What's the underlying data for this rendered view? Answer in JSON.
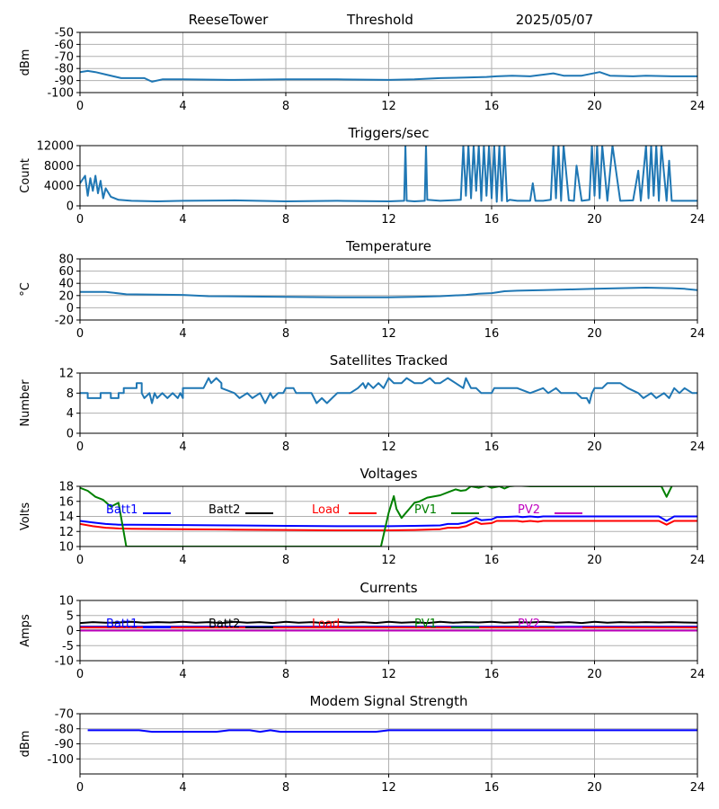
{
  "header": {
    "left": "ReeseTower",
    "center": "Threshold",
    "right": "2025/05/07"
  },
  "x_ticks": [
    "0",
    "4",
    "8",
    "12",
    "16",
    "20",
    "24"
  ],
  "chart_data": [
    {
      "id": "threshold",
      "type": "line",
      "title": "",
      "ylabel": "dBm",
      "xlim": [
        0,
        24
      ],
      "ylim": [
        -100,
        -50
      ],
      "yticks": [
        "-100",
        "-90",
        "-80",
        "-70",
        "-60",
        "-50"
      ],
      "grid": true,
      "series": [
        {
          "color": "#1f77b4",
          "x": [
            0,
            0.3,
            0.6,
            1,
            1.6,
            2.5,
            2.8,
            3.2,
            4,
            6,
            8,
            10,
            12,
            13,
            14,
            15,
            15.8,
            16.2,
            16.8,
            17.5,
            18.4,
            18.8,
            19.5,
            20.2,
            20.6,
            21.5,
            22,
            23,
            24
          ],
          "y": [
            -83,
            -82,
            -83,
            -85,
            -88,
            -88,
            -91,
            -89,
            -89,
            -89.5,
            -89,
            -89,
            -89.5,
            -89,
            -88,
            -87.5,
            -87,
            -86.5,
            -86,
            -86.5,
            -84,
            -86,
            -86,
            -83,
            -86,
            -86.5,
            -86,
            -86.5,
            -86.5
          ]
        }
      ]
    },
    {
      "id": "triggers",
      "type": "line",
      "title": "Triggers/sec",
      "ylabel": "Count",
      "xlim": [
        0,
        24
      ],
      "ylim": [
        0,
        12000
      ],
      "yticks": [
        "0",
        "4000",
        "8000",
        "12000"
      ],
      "grid": true,
      "series": [
        {
          "color": "#1f77b4",
          "x": [
            0,
            0.2,
            0.3,
            0.4,
            0.5,
            0.6,
            0.7,
            0.8,
            0.9,
            1.0,
            1.2,
            1.5,
            2,
            3,
            4,
            6,
            8,
            10,
            12,
            12.6,
            12.65,
            12.7,
            13,
            13.4,
            13.45,
            13.5,
            14,
            14.8,
            14.9,
            15.0,
            15.1,
            15.2,
            15.3,
            15.4,
            15.5,
            15.6,
            15.7,
            15.8,
            15.9,
            16.0,
            16.1,
            16.2,
            16.3,
            16.4,
            16.5,
            16.6,
            16.7,
            17.0,
            17.5,
            17.6,
            17.7,
            18.0,
            18.3,
            18.4,
            18.5,
            18.6,
            18.7,
            18.8,
            19.0,
            19.2,
            19.3,
            19.5,
            19.8,
            19.9,
            20.0,
            20.1,
            20.2,
            20.3,
            20.5,
            20.7,
            21.0,
            21.5,
            21.7,
            21.8,
            22.0,
            22.1,
            22.2,
            22.3,
            22.4,
            22.5,
            22.6,
            22.8,
            22.9,
            23.0,
            23.5,
            24
          ],
          "y": [
            4500,
            6000,
            2000,
            5500,
            3000,
            6000,
            2500,
            5000,
            1500,
            3500,
            1800,
            1200,
            1000,
            900,
            1000,
            1100,
            900,
            1000,
            900,
            1000,
            12000,
            1000,
            900,
            1000,
            12000,
            1200,
            1000,
            1200,
            12000,
            2000,
            12000,
            1500,
            12000,
            3000,
            12000,
            1000,
            12000,
            2000,
            12000,
            1500,
            12000,
            800,
            12000,
            1000,
            12000,
            900,
            1200,
            1000,
            1000,
            4500,
            1000,
            1000,
            1200,
            12000,
            1500,
            12000,
            1000,
            12000,
            1100,
            1000,
            8000,
            1000,
            1200,
            12000,
            2000,
            12000,
            1500,
            12000,
            1000,
            12000,
            1000,
            1100,
            7000,
            1000,
            12000,
            1500,
            12000,
            2000,
            12000,
            1000,
            12000,
            1000,
            9000,
            1000,
            1000,
            1000
          ]
        }
      ]
    },
    {
      "id": "temperature",
      "type": "line",
      "title": "Temperature",
      "ylabel": "°C",
      "xlim": [
        0,
        24
      ],
      "ylim": [
        -20,
        80
      ],
      "yticks": [
        "-20",
        "0",
        "20",
        "40",
        "60",
        "80"
      ],
      "grid": true,
      "series": [
        {
          "color": "#1f77b4",
          "x": [
            0,
            1,
            1.8,
            4,
            5,
            8,
            10,
            12,
            13,
            14,
            14.5,
            15,
            15.5,
            16,
            16.5,
            17,
            18,
            19,
            20,
            21,
            22,
            23,
            23.5,
            24
          ],
          "y": [
            26,
            26,
            22,
            21,
            19,
            18,
            17,
            17,
            18,
            19,
            20,
            21,
            23,
            24,
            27,
            28,
            29,
            30,
            31,
            32,
            33,
            32,
            31,
            29
          ]
        }
      ]
    },
    {
      "id": "satellites",
      "type": "line",
      "title": "Satellites Tracked",
      "ylabel": "Number",
      "xlim": [
        0,
        24
      ],
      "ylim": [
        0,
        12
      ],
      "yticks": [
        "0",
        "4",
        "8",
        "12"
      ],
      "grid": true,
      "series": [
        {
          "color": "#1f77b4",
          "x": [
            0,
            0.3,
            0.3,
            0.8,
            0.8,
            1.2,
            1.2,
            1.5,
            1.5,
            1.7,
            1.7,
            2.2,
            2.2,
            2.4,
            2.4,
            2.5,
            2.7,
            2.8,
            2.9,
            3.0,
            3.2,
            3.4,
            3.6,
            3.8,
            3.9,
            4.0,
            4.0,
            4.8,
            4.9,
            5.0,
            5.1,
            5.3,
            5.5,
            5.5,
            6.0,
            6.2,
            6.5,
            6.7,
            7.0,
            7.2,
            7.4,
            7.5,
            7.7,
            7.9,
            8.0,
            8.3,
            8.4,
            9.0,
            9.2,
            9.4,
            9.6,
            9.8,
            10.0,
            10.5,
            10.8,
            11.0,
            11.1,
            11.2,
            11.4,
            11.6,
            11.8,
            12.0,
            12.2,
            12.5,
            12.7,
            13.0,
            13.3,
            13.6,
            13.8,
            14.0,
            14.3,
            14.6,
            14.9,
            15.0,
            15.1,
            15.2,
            15.4,
            15.6,
            16.0,
            16.1,
            16.5,
            16.8,
            17.0,
            17.5,
            18.0,
            18.2,
            18.5,
            18.7,
            19.0,
            19.3,
            19.5,
            19.7,
            19.8,
            19.9,
            20.0,
            20.3,
            20.5,
            21.0,
            21.3,
            21.7,
            21.9,
            22.2,
            22.4,
            22.7,
            22.9,
            23.1,
            23.3,
            23.5,
            23.8,
            24
          ],
          "y": [
            8,
            8,
            7,
            7,
            8,
            8,
            7,
            7,
            8,
            8,
            9,
            9,
            10,
            10,
            8,
            7,
            8,
            6,
            8,
            7,
            8,
            7,
            8,
            7,
            8,
            7,
            9,
            9,
            10,
            11,
            10,
            11,
            10,
            9,
            8,
            7,
            8,
            7,
            8,
            6,
            8,
            7,
            8,
            8,
            9,
            9,
            8,
            8,
            6,
            7,
            6,
            7,
            8,
            8,
            9,
            10,
            9,
            10,
            9,
            10,
            9,
            11,
            10,
            10,
            11,
            10,
            10,
            11,
            10,
            10,
            11,
            10,
            9,
            11,
            10,
            9,
            9,
            8,
            8,
            9,
            9,
            9,
            9,
            8,
            9,
            8,
            9,
            8,
            8,
            8,
            7,
            7,
            6,
            8,
            9,
            9,
            10,
            10,
            9,
            8,
            7,
            8,
            7,
            8,
            7,
            9,
            8,
            9,
            8,
            8
          ]
        }
      ]
    },
    {
      "id": "voltages",
      "type": "line",
      "title": "Voltages",
      "ylabel": "Volts",
      "xlim": [
        0,
        24
      ],
      "ylim": [
        10,
        18
      ],
      "yticks": [
        "10",
        "12",
        "14",
        "16",
        "18"
      ],
      "grid": true,
      "legend": "top",
      "series": [
        {
          "name": "Batt1",
          "color": "#0000ff",
          "x": [
            0,
            0.5,
            1,
            1.5,
            2,
            4,
            6,
            8,
            10,
            12,
            13,
            14,
            14.3,
            14.7,
            15,
            15.4,
            15.6,
            16,
            16.2,
            16.4,
            17,
            17.2,
            17.5,
            17.8,
            18,
            19,
            20,
            21,
            22,
            22.5,
            22.8,
            23.1,
            23.5,
            24
          ],
          "y": [
            13.4,
            13.2,
            13.0,
            12.9,
            12.9,
            12.85,
            12.8,
            12.75,
            12.7,
            12.7,
            12.75,
            12.8,
            13.0,
            13.0,
            13.2,
            13.8,
            13.5,
            13.6,
            13.9,
            13.9,
            14.0,
            13.9,
            14.0,
            13.9,
            14.0,
            14.0,
            14.0,
            14.0,
            14.0,
            14.0,
            13.4,
            14.0,
            14.0,
            14.0
          ]
        },
        {
          "name": "Batt2",
          "color": "#000000",
          "x": [],
          "y": []
        },
        {
          "name": "Load",
          "color": "#ff0000",
          "x": [
            0,
            0.5,
            1,
            1.5,
            2,
            4,
            6,
            8,
            10,
            12,
            13,
            14,
            14.3,
            14.7,
            15,
            15.4,
            15.6,
            16,
            16.2,
            16.4,
            17,
            17.2,
            17.5,
            17.8,
            18,
            19,
            20,
            21,
            22,
            22.5,
            22.8,
            23.1,
            23.5,
            24
          ],
          "y": [
            13.0,
            12.7,
            12.5,
            12.4,
            12.35,
            12.3,
            12.25,
            12.2,
            12.15,
            12.15,
            12.2,
            12.3,
            12.5,
            12.5,
            12.7,
            13.3,
            13.0,
            13.1,
            13.4,
            13.4,
            13.4,
            13.3,
            13.4,
            13.3,
            13.4,
            13.4,
            13.4,
            13.4,
            13.4,
            13.4,
            12.9,
            13.4,
            13.4,
            13.4
          ]
        },
        {
          "name": "PV1",
          "color": "#008000",
          "x": [
            0,
            0.3,
            0.6,
            0.9,
            1.2,
            1.5,
            1.8,
            11.7,
            11.9,
            12.0,
            12.2,
            12.3,
            12.5,
            12.8,
            13.0,
            13.2,
            13.5,
            14.0,
            14.3,
            14.6,
            14.8,
            15.0,
            15.2,
            15.5,
            15.8,
            16.0,
            16.3,
            16.5,
            16.7,
            17.0,
            17.5,
            17.8,
            22.6,
            22.8,
            23.0
          ],
          "y": [
            17.8,
            17.4,
            16.6,
            16.2,
            15.3,
            15.8,
            10.0,
            10.0,
            13.0,
            14.5,
            16.7,
            15.0,
            13.8,
            15.0,
            15.8,
            16.0,
            16.5,
            16.8,
            17.2,
            17.6,
            17.4,
            17.5,
            18.0,
            17.8,
            18.1,
            17.8,
            18.0,
            17.7,
            18.0,
            18.1,
            18.0,
            18.0,
            18.0,
            16.6,
            18.0
          ]
        },
        {
          "name": "PV2",
          "color": "#bf00bf",
          "x": [],
          "y": []
        }
      ]
    },
    {
      "id": "currents",
      "type": "line",
      "title": "Currents",
      "ylabel": "Amps",
      "xlim": [
        0,
        24
      ],
      "ylim": [
        -10,
        10
      ],
      "yticks": [
        "-10",
        "-5",
        "0",
        "5",
        "10"
      ],
      "grid": true,
      "legend": "top",
      "series": [
        {
          "name": "Batt1",
          "color": "#0000ff",
          "x": [
            0,
            24
          ],
          "y": [
            1.3,
            1.3
          ]
        },
        {
          "name": "Batt2",
          "color": "#000000",
          "x": [
            0,
            0.5,
            1,
            1.5,
            2,
            2.5,
            3,
            3.5,
            4,
            4.5,
            5,
            5.5,
            6,
            6.5,
            7,
            7.5,
            8,
            8.5,
            9,
            9.5,
            10,
            10.5,
            11,
            11.5,
            12,
            12.5,
            13,
            13.5,
            14,
            14.5,
            15,
            15.5,
            16,
            16.5,
            17,
            17.5,
            18,
            18.5,
            19,
            19.5,
            20,
            20.5,
            21,
            21.5,
            22,
            22.5,
            23,
            23.5,
            24
          ],
          "y": [
            2.5,
            2.8,
            2.6,
            2.7,
            2.9,
            2.6,
            2.8,
            2.7,
            2.9,
            2.6,
            2.8,
            2.5,
            2.9,
            2.6,
            2.8,
            2.5,
            2.9,
            2.6,
            2.8,
            2.5,
            2.9,
            2.6,
            2.8,
            2.5,
            2.9,
            2.6,
            2.8,
            2.5,
            2.9,
            2.6,
            2.8,
            2.7,
            2.9,
            2.6,
            2.8,
            2.7,
            2.9,
            2.6,
            2.8,
            2.5,
            2.9,
            2.6,
            2.8,
            2.7,
            2.8,
            2.7,
            2.8,
            2.7,
            2.6
          ]
        },
        {
          "name": "Load",
          "color": "#ff0000",
          "x": [
            0,
            24
          ],
          "y": [
            1.0,
            1.0
          ]
        },
        {
          "name": "PV1",
          "color": "#008000",
          "x": [
            0,
            24
          ],
          "y": [
            0.1,
            0.1
          ]
        },
        {
          "name": "PV2",
          "color": "#bf00bf",
          "x": [
            0,
            24
          ],
          "y": [
            0.0,
            0.0
          ]
        }
      ]
    },
    {
      "id": "modem",
      "type": "line",
      "title": "Modem Signal Strength",
      "ylabel": "dBm",
      "xlim": [
        0,
        24
      ],
      "ylim": [
        -110,
        -70
      ],
      "yticks": [
        "-100",
        "-90",
        "-80",
        "-70"
      ],
      "grid": true,
      "series": [
        {
          "color": "#0000ff",
          "x": [
            0.3,
            2.3,
            2.8,
            5.3,
            5.8,
            6.6,
            7.0,
            7.4,
            7.8,
            11.5,
            12.0,
            24
          ],
          "y": [
            -81,
            -81,
            -82,
            -82,
            -81,
            -81,
            -82,
            -81,
            -82,
            -82,
            -81,
            -81
          ]
        }
      ]
    }
  ]
}
